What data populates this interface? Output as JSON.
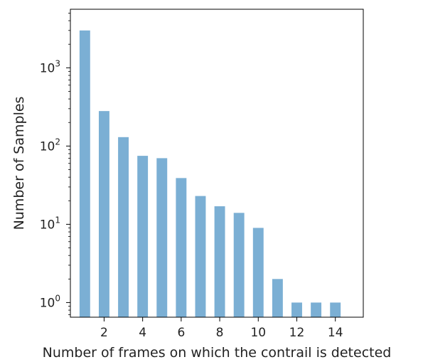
{
  "chart_data": {
    "type": "bar",
    "title": "",
    "xlabel": "Number of frames on which the contrail is detected",
    "ylabel": "Number of Samples",
    "x": [
      1,
      2,
      3,
      4,
      5,
      6,
      7,
      8,
      9,
      10,
      11,
      12,
      13,
      14
    ],
    "values": [
      3000,
      280,
      130,
      75,
      70,
      39,
      23,
      17,
      14,
      9,
      2,
      1,
      1,
      1
    ],
    "xlim": [
      0.25,
      15.45
    ],
    "ylim": [
      0.65,
      5600
    ],
    "yscale": "log",
    "xticks": [
      "2",
      "4",
      "6",
      "8",
      "10",
      "12",
      "14"
    ],
    "xtick_values": [
      2,
      4,
      6,
      8,
      10,
      12,
      14
    ],
    "yticks": [
      {
        "value": 1,
        "base": "10",
        "exp": "0"
      },
      {
        "value": 10,
        "base": "10",
        "exp": "1"
      },
      {
        "value": 100,
        "base": "10",
        "exp": "2"
      },
      {
        "value": 1000,
        "base": "10",
        "exp": "3"
      }
    ],
    "bar_color": "#7bafd4",
    "grid": false,
    "legend": "none"
  }
}
